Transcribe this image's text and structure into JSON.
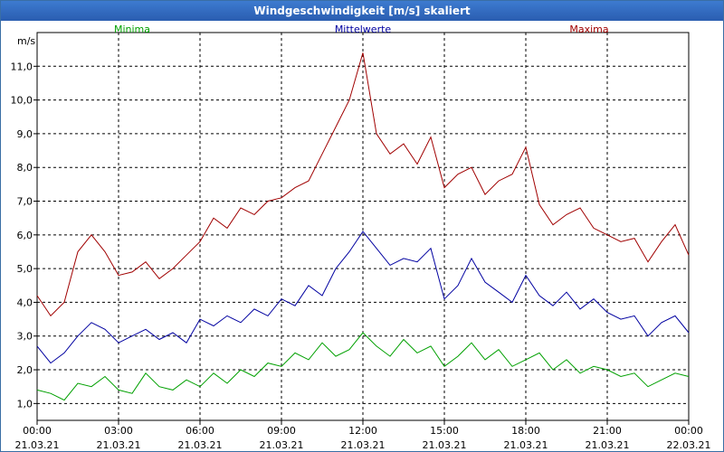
{
  "window": {
    "title": "Windgeschwindigkeit [m/s] skaliert"
  },
  "chart_data": {
    "type": "line",
    "title": "Windgeschwindigkeit [m/s] skaliert",
    "ylabel": "m/s",
    "ylim": [
      0.5,
      12.0
    ],
    "xlim": [
      0,
      24
    ],
    "yticks": [
      {
        "value": 1.0,
        "label": "1,0"
      },
      {
        "value": 2.0,
        "label": "2,0"
      },
      {
        "value": 3.0,
        "label": "3,0"
      },
      {
        "value": 4.0,
        "label": "4,0"
      },
      {
        "value": 5.0,
        "label": "5,0"
      },
      {
        "value": 6.0,
        "label": "6,0"
      },
      {
        "value": 7.0,
        "label": "7,0"
      },
      {
        "value": 8.0,
        "label": "8,0"
      },
      {
        "value": 9.0,
        "label": "9,0"
      },
      {
        "value": 10.0,
        "label": "10,0"
      },
      {
        "value": 11.0,
        "label": "11,0"
      }
    ],
    "xticks": [
      {
        "value": 0,
        "time": "00:00",
        "date": "21.03.21"
      },
      {
        "value": 3,
        "time": "03:00",
        "date": "21.03.21"
      },
      {
        "value": 6,
        "time": "06:00",
        "date": "21.03.21"
      },
      {
        "value": 9,
        "time": "09:00",
        "date": "21.03.21"
      },
      {
        "value": 12,
        "time": "12:00",
        "date": "21.03.21"
      },
      {
        "value": 15,
        "time": "15:00",
        "date": "21.03.21"
      },
      {
        "value": 18,
        "time": "18:00",
        "date": "21.03.21"
      },
      {
        "value": 21,
        "time": "21:00",
        "date": "21.03.21"
      },
      {
        "value": 24,
        "time": "00:00",
        "date": "22.03.21"
      }
    ],
    "grid": true,
    "series": [
      {
        "name": "Minima",
        "color": "#00a000",
        "x": [
          0,
          0.5,
          1,
          1.5,
          2,
          2.5,
          3,
          3.5,
          4,
          4.5,
          5,
          5.5,
          6,
          6.5,
          7,
          7.5,
          8,
          8.5,
          9,
          9.5,
          10,
          10.5,
          11,
          11.5,
          12,
          12.5,
          13,
          13.5,
          14,
          14.5,
          15,
          15.5,
          16,
          16.5,
          17,
          17.5,
          18,
          18.5,
          19,
          19.5,
          20,
          20.5,
          21,
          21.5,
          22,
          22.5,
          23,
          23.5,
          24
        ],
        "values": [
          1.4,
          1.3,
          1.1,
          1.6,
          1.5,
          1.8,
          1.4,
          1.3,
          1.9,
          1.5,
          1.4,
          1.7,
          1.5,
          1.9,
          1.6,
          2.0,
          1.8,
          2.2,
          2.1,
          2.5,
          2.3,
          2.8,
          2.4,
          2.6,
          3.1,
          2.7,
          2.4,
          2.9,
          2.5,
          2.7,
          2.1,
          2.4,
          2.8,
          2.3,
          2.6,
          2.1,
          2.3,
          2.5,
          2.0,
          2.3,
          1.9,
          2.1,
          2.0,
          1.8,
          1.9,
          1.5,
          1.7,
          1.9,
          1.8
        ]
      },
      {
        "name": "Mittelwerte",
        "color": "#0000a0",
        "x": [
          0,
          0.5,
          1,
          1.5,
          2,
          2.5,
          3,
          3.5,
          4,
          4.5,
          5,
          5.5,
          6,
          6.5,
          7,
          7.5,
          8,
          8.5,
          9,
          9.5,
          10,
          10.5,
          11,
          11.5,
          12,
          12.5,
          13,
          13.5,
          14,
          14.5,
          15,
          15.5,
          16,
          16.5,
          17,
          17.5,
          18,
          18.5,
          19,
          19.5,
          20,
          20.5,
          21,
          21.5,
          22,
          22.5,
          23,
          23.5,
          24
        ],
        "values": [
          2.7,
          2.2,
          2.5,
          3.0,
          3.4,
          3.2,
          2.8,
          3.0,
          3.2,
          2.9,
          3.1,
          2.8,
          3.5,
          3.3,
          3.6,
          3.4,
          3.8,
          3.6,
          4.1,
          3.9,
          4.5,
          4.2,
          5.0,
          5.5,
          6.1,
          5.6,
          5.1,
          5.3,
          5.2,
          5.6,
          4.1,
          4.5,
          5.3,
          4.6,
          4.3,
          4.0,
          4.8,
          4.2,
          3.9,
          4.3,
          3.8,
          4.1,
          3.7,
          3.5,
          3.6,
          3.0,
          3.4,
          3.6,
          3.1
        ]
      },
      {
        "name": "Maxima",
        "color": "#a00000",
        "x": [
          0,
          0.5,
          1,
          1.5,
          2,
          2.5,
          3,
          3.5,
          4,
          4.5,
          5,
          5.5,
          6,
          6.5,
          7,
          7.5,
          8,
          8.5,
          9,
          9.5,
          10,
          10.5,
          11,
          11.5,
          12,
          12.5,
          13,
          13.5,
          14,
          14.5,
          15,
          15.5,
          16,
          16.5,
          17,
          17.5,
          18,
          18.5,
          19,
          19.5,
          20,
          20.5,
          21,
          21.5,
          22,
          22.5,
          23,
          23.5,
          24
        ],
        "values": [
          4.2,
          3.6,
          4.0,
          5.5,
          6.0,
          5.5,
          4.8,
          4.9,
          5.2,
          4.7,
          5.0,
          5.4,
          5.8,
          6.5,
          6.2,
          6.8,
          6.6,
          7.0,
          7.1,
          7.4,
          7.6,
          8.4,
          9.2,
          10.0,
          11.4,
          9.0,
          8.4,
          8.7,
          8.1,
          8.9,
          7.4,
          7.8,
          8.0,
          7.2,
          7.6,
          7.8,
          8.6,
          6.9,
          6.3,
          6.6,
          6.8,
          6.2,
          6.0,
          5.8,
          5.9,
          5.2,
          5.8,
          6.3,
          5.4
        ]
      }
    ]
  }
}
